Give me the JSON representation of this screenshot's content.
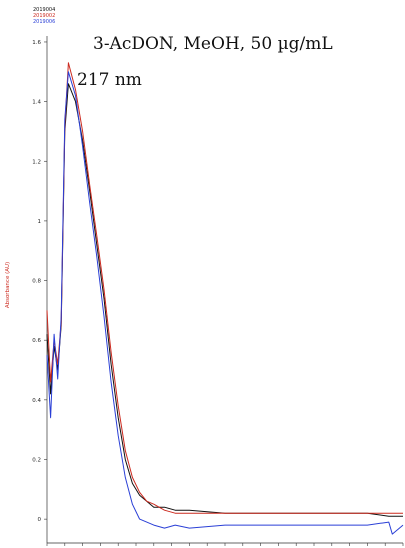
{
  "chart_data": {
    "type": "line",
    "title": "3-AcDON, MeOH, 50 µg/mL",
    "annotation": "217 nm",
    "ylabel": "Absorbance (AU)",
    "ylim": [
      -0.08,
      1.62
    ],
    "yticks": [
      0,
      0.2,
      0.4,
      0.6,
      0.8,
      1,
      1.2,
      1.4,
      1.6
    ],
    "ytick_labels": [
      "0",
      "0.2",
      "0.4",
      "0.6",
      "0.8",
      "1",
      "1.2",
      "1.4",
      "1.6"
    ],
    "xlim": [
      0,
      100
    ],
    "x": [
      0,
      1,
      2,
      3,
      4,
      5,
      6,
      8,
      10,
      12,
      14,
      16,
      18,
      20,
      22,
      24,
      26,
      28,
      30,
      33,
      36,
      40,
      50,
      60,
      70,
      80,
      90,
      96,
      97,
      100
    ],
    "series": [
      {
        "name": "2019004",
        "color": "#111111",
        "values": [
          0.62,
          0.42,
          0.58,
          0.5,
          0.65,
          1.3,
          1.46,
          1.4,
          1.27,
          1.1,
          0.92,
          0.74,
          0.52,
          0.34,
          0.2,
          0.12,
          0.08,
          0.06,
          0.04,
          0.04,
          0.03,
          0.03,
          0.02,
          0.02,
          0.02,
          0.02,
          0.02,
          0.01,
          0.01,
          0.01
        ]
      },
      {
        "name": "2019002",
        "color": "#cc2a1f",
        "values": [
          0.7,
          0.46,
          0.6,
          0.52,
          0.66,
          1.32,
          1.53,
          1.44,
          1.3,
          1.12,
          0.95,
          0.77,
          0.56,
          0.38,
          0.23,
          0.14,
          0.09,
          0.06,
          0.05,
          0.03,
          0.02,
          0.02,
          0.02,
          0.02,
          0.02,
          0.02,
          0.02,
          0.02,
          0.02,
          0.02
        ]
      },
      {
        "name": "2019006",
        "color": "#2a3fd6",
        "values": [
          0.55,
          0.34,
          0.62,
          0.47,
          0.68,
          1.34,
          1.5,
          1.42,
          1.25,
          1.06,
          0.88,
          0.68,
          0.46,
          0.28,
          0.14,
          0.05,
          0.0,
          -0.01,
          -0.02,
          -0.03,
          -0.02,
          -0.03,
          -0.02,
          -0.02,
          -0.02,
          -0.02,
          -0.02,
          -0.01,
          -0.05,
          -0.02
        ]
      }
    ]
  }
}
